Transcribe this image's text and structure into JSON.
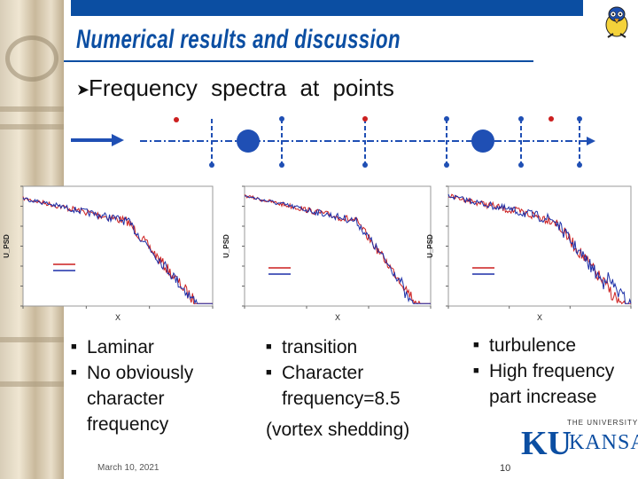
{
  "slide": {
    "title": "Numerical results and discussion",
    "heading": "Frequency spectra at points",
    "date": "March 10, 2021",
    "page": "10"
  },
  "logo": {
    "top_line": "THE UNIVERSITY OF",
    "ku": "KU",
    "name": "KANSAS"
  },
  "colors": {
    "accent": "#0b4ea2",
    "red_series": "#cc1f1f",
    "blue_series": "#1c2fa8",
    "point_marker": "#cc1f1f"
  },
  "icons": [
    "bullet-arrow-icon",
    "flow-arrow-icon",
    "cylinder-icon",
    "mascot-icon",
    "square-bullet-icon"
  ],
  "columns": [
    {
      "items": [
        "Laminar",
        "No obviously character frequency"
      ]
    },
    {
      "items": [
        "transition",
        "Character frequency=8.5"
      ],
      "extra": "(vortex shedding)"
    },
    {
      "items": [
        "turbulence",
        "High frequency part increase"
      ]
    }
  ],
  "chart_data": [
    {
      "type": "line",
      "xlabel": "X",
      "ylabel": "U_PSD",
      "legend": "center-left",
      "series": [
        {
          "color": "#cc1f1f"
        },
        {
          "color": "#1c2fa8"
        }
      ]
    },
    {
      "type": "line",
      "xlabel": "X",
      "ylabel": "U_PSD",
      "legend": "bottom-left",
      "series": [
        {
          "color": "#cc1f1f"
        },
        {
          "color": "#1c2fa8"
        }
      ]
    },
    {
      "type": "line",
      "xlabel": "X",
      "ylabel": "U_PSD",
      "legend": "bottom-left",
      "series": [
        {
          "color": "#cc1f1f"
        },
        {
          "color": "#1c2fa8"
        }
      ]
    }
  ]
}
